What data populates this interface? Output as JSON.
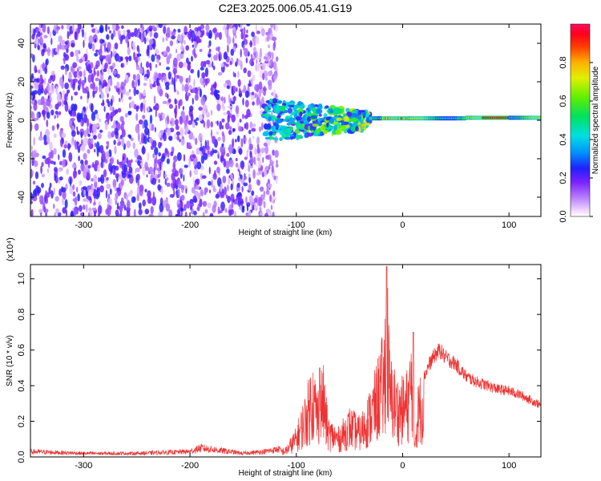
{
  "figure_title": "C2E3.2025.006.05.41.G19",
  "chart_data": [
    {
      "type": "heatmap",
      "title": "C2E3.2025.006.05.41.G19",
      "xlabel": "Height of straight line (km)",
      "ylabel": "Frequency (Hz)",
      "xlim": [
        -350,
        130
      ],
      "ylim": [
        -50,
        50
      ],
      "x_ticks": [
        -300,
        -200,
        -100,
        0,
        100
      ],
      "y_ticks": [
        -40,
        -20,
        0,
        20,
        40
      ],
      "colorbar": {
        "label": "Normalized spectral amplitude",
        "range": [
          0,
          1
        ],
        "ticks": [
          "0.0",
          "0.2",
          "0.4",
          "0.6",
          "0.8"
        ],
        "colormap": [
          "#ff00ff",
          "#8800ff",
          "#0000ff",
          "#00aaff",
          "#00ffcc",
          "#00ff00",
          "#aaff00",
          "#ffff00",
          "#ff8800",
          "#ff0000",
          "#ff0040"
        ]
      },
      "regions": [
        {
          "x_range": [
            -350,
            -130
          ],
          "description_value": 0.15
        },
        {
          "x_range": [
            -130,
            -30
          ],
          "description_value": 0.4
        },
        {
          "x_range": [
            -30,
            130
          ],
          "description_value": 0.7
        }
      ],
      "grid": false
    },
    {
      "type": "line",
      "xlabel": "Height of straight line (km)",
      "ylabel": "SNR (10 * v/v)",
      "y_multiplier": "(x10⁴)",
      "xlim": [
        -350,
        130
      ],
      "ylim": [
        0,
        1.08
      ],
      "x_ticks": [
        -300,
        -200,
        -100,
        0,
        100
      ],
      "y_ticks": [
        "0.0",
        "0.2",
        "0.4",
        "0.6",
        "0.8",
        "1.0"
      ],
      "color": "#ee3333",
      "series": [
        {
          "x": [
            -350,
            -300,
            -250,
            -200,
            -190,
            -150,
            -130,
            -110,
            -100,
            -90,
            -85,
            -80,
            -75,
            -70,
            -60,
            -50,
            -40,
            -30,
            -25,
            -20,
            -18,
            -15,
            -12,
            -10,
            -5,
            0,
            5,
            10,
            11,
            15,
            20,
            25,
            30,
            35,
            40,
            50,
            60,
            70,
            80,
            90,
            100,
            110,
            120,
            130
          ],
          "y": [
            0.03,
            0.02,
            0.02,
            0.03,
            0.05,
            0.02,
            0.03,
            0.05,
            0.15,
            0.35,
            0.5,
            0.35,
            0.48,
            0.2,
            0.15,
            0.25,
            0.2,
            0.35,
            0.45,
            0.6,
            0.55,
            1.07,
            0.5,
            0.5,
            0.4,
            0.4,
            0.45,
            0.7,
            0.1,
            0.4,
            0.45,
            0.52,
            0.57,
            0.6,
            0.56,
            0.52,
            0.45,
            0.42,
            0.4,
            0.38,
            0.37,
            0.35,
            0.32,
            0.29
          ]
        }
      ],
      "grid": false
    }
  ]
}
